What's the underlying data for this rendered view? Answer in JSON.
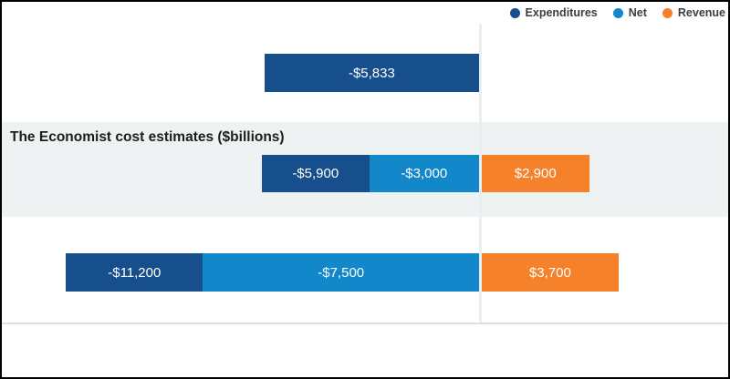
{
  "colors": {
    "expenditures": "#164F8B",
    "net": "#1287CA",
    "revenue": "#F5822B",
    "band_bg": "#EEF2F3",
    "zero_line": "#E9EEF0",
    "axis_line": "#D9E1E2",
    "legend_text": "#3D3D3D",
    "title_text": "#1D1D1D",
    "bar_label_text": "#FFFFFF",
    "frame_border": "#000000"
  },
  "legend": {
    "items": [
      {
        "name": "Expenditures"
      },
      {
        "name": "Net"
      },
      {
        "name": "Revenue"
      }
    ]
  },
  "band": {
    "title": "The Economist cost estimates ($billions)"
  },
  "chart_data": {
    "type": "bar",
    "subtype": "horizontal-diverging-stacked",
    "unit": "$billions",
    "title": "The Economist cost estimates ($billions)",
    "legend_position": "top-right",
    "zero_axis_line": true,
    "x_axis_labels_visible": false,
    "series_names": [
      "Expenditures",
      "Net",
      "Revenue"
    ],
    "rows": [
      {
        "name": "row-1",
        "expenditures": -5833,
        "net": null,
        "revenue": null,
        "labels": {
          "expenditures": "-$5,833"
        }
      },
      {
        "name": "row-2-economist-highlighted",
        "expenditures": -5900,
        "net": -3000,
        "revenue": 2900,
        "labels": {
          "expenditures": "-$5,900",
          "net": "-$3,000",
          "revenue": "$2,900"
        }
      },
      {
        "name": "row-3",
        "expenditures": -11200,
        "net": -7500,
        "revenue": 3700,
        "labels": {
          "expenditures": "-$11,200",
          "net": "-$7,500",
          "revenue": "$3,700"
        }
      }
    ]
  }
}
